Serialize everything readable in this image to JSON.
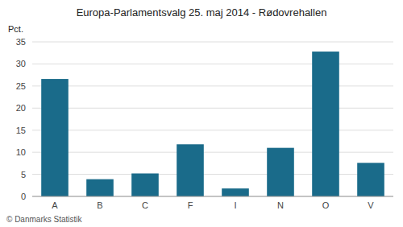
{
  "chart_data": {
    "type": "bar",
    "title": "Europa-Parlamentsvalg 25. maj 2014 - Rødovrehallen",
    "ylabel": "Pct.",
    "annotations": [
      "© Danmarks Statistik"
    ],
    "categories": [
      "A",
      "B",
      "C",
      "F",
      "I",
      "N",
      "O",
      "V"
    ],
    "values": [
      26.6,
      3.9,
      5.2,
      11.8,
      1.8,
      11.0,
      32.8,
      7.6
    ],
    "color": "#1a6b8a",
    "ylim": [
      0,
      35
    ],
    "yticks": [
      0,
      5,
      10,
      15,
      20,
      25,
      30,
      35
    ],
    "grid": true
  }
}
